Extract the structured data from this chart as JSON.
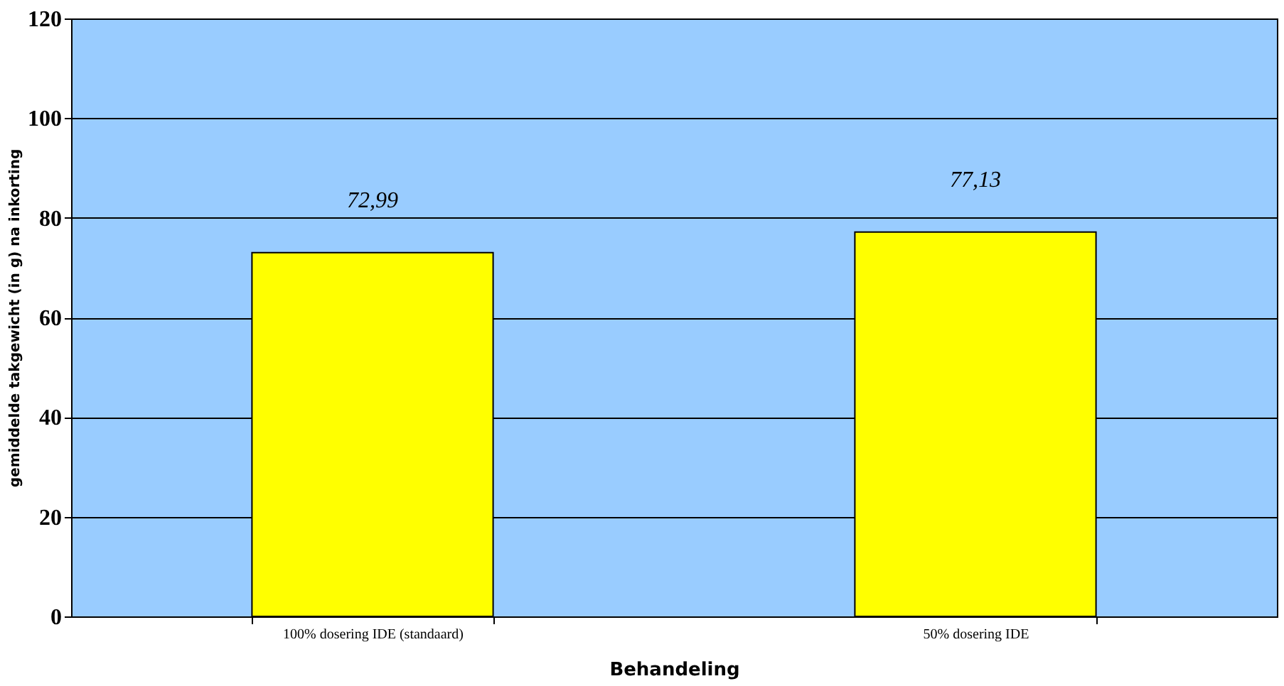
{
  "chart_data": {
    "type": "bar",
    "categories": [
      "100% dosering IDE (standaard)",
      "50% dosering IDE"
    ],
    "values": [
      72.99,
      77.13
    ],
    "value_labels": [
      "72,99",
      "77,13"
    ],
    "color": "#ffff00",
    "xlabel": "Behandeling",
    "ylabel": "gemiddelde takgewicht (in g) na inkorting",
    "ylim": [
      0,
      120
    ],
    "yticks": [
      0,
      20,
      40,
      60,
      80,
      100,
      120
    ],
    "grid": "y"
  }
}
